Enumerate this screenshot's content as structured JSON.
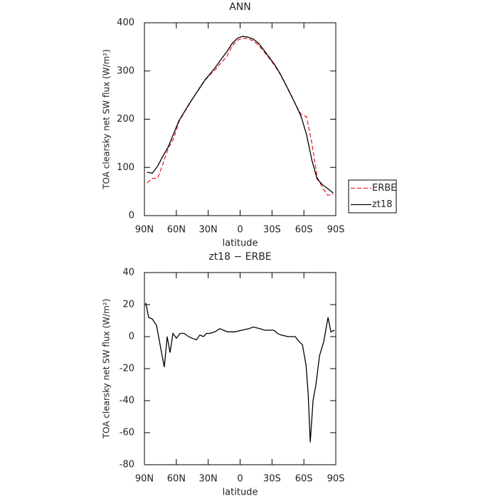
{
  "chart_data": [
    {
      "type": "line",
      "title": "ANN",
      "x_label": "latitude",
      "y_label": "TOA clearsky net SW flux (W/m²)",
      "x": [
        87.5,
        82.5,
        77.5,
        72.5,
        67.5,
        62.5,
        57.5,
        52.5,
        47.5,
        42.5,
        37.5,
        32.5,
        27.5,
        22.5,
        17.5,
        12.5,
        7.5,
        2.5,
        -2.5,
        -7.5,
        -12.5,
        -17.5,
        -22.5,
        -27.5,
        -32.5,
        -37.5,
        -42.5,
        -47.5,
        -52.5,
        -57.5,
        -62.5,
        -67.5,
        -72.5,
        -77.5,
        -82.5,
        -87.5
      ],
      "series": [
        {
          "name": "ERBE",
          "color": "#e8262b",
          "dashed": true,
          "values": [
            68,
            77,
            78,
            108,
            140,
            160,
            195,
            214,
            232,
            250,
            266,
            282,
            294,
            305,
            318,
            330,
            352,
            364,
            368,
            367,
            362,
            353,
            340,
            326,
            311,
            294,
            273,
            251,
            229,
            210,
            205,
            150,
            80,
            58,
            42,
            45
          ]
        },
        {
          "name": "zt18",
          "color": "#000000",
          "dashed": false,
          "values": [
            90,
            88,
            103,
            124,
            143,
            170,
            197,
            215,
            233,
            250,
            267,
            283,
            296,
            310,
            325,
            340,
            357,
            368,
            372,
            370,
            366,
            357,
            343,
            328,
            313,
            295,
            274,
            252,
            229,
            205,
            168,
            115,
            76,
            64,
            56,
            47
          ]
        }
      ],
      "xlim": [
        90,
        -90
      ],
      "xticks": [
        {
          "value": 90,
          "label": "90N"
        },
        {
          "value": 60,
          "label": "60N"
        },
        {
          "value": 30,
          "label": "30N"
        },
        0,
        {
          "value": -30,
          "label": "30S"
        },
        {
          "value": -60,
          "label": "60S"
        },
        {
          "value": -90,
          "label": "90S"
        }
      ],
      "ylim": [
        0,
        400
      ],
      "yticks": [
        0,
        100,
        200,
        300,
        400
      ],
      "legend": "outside-right"
    },
    {
      "type": "line",
      "title": "zt18 − ERBE",
      "x_label": "latitude",
      "y_label": "TOA clearsky net SW flux (W/m²)",
      "x": [
        88.7,
        86,
        82.6,
        78.6,
        75.3,
        71.3,
        68.6,
        65.9,
        63.2,
        59.9,
        56.5,
        52.5,
        48.5,
        45.2,
        41.1,
        37.8,
        34.4,
        31.8,
        28.4,
        23.7,
        19.1,
        15.7,
        11.7,
        5,
        -1.7,
        -8.4,
        -12.4,
        -18.4,
        -23.1,
        -31.8,
        -35.2,
        -38.5,
        -45.2,
        -51.9,
        -55.2,
        -58.6,
        -62,
        -64,
        -66,
        -68.6,
        -71.3,
        -74.7,
        -78.7,
        -82.7,
        -85.4,
        -88.7
      ],
      "color": "#000000",
      "values": [
        21,
        12,
        11,
        7,
        -5,
        -19,
        0,
        -10,
        2,
        -1,
        2,
        2,
        0,
        -1,
        -2,
        1,
        0,
        2,
        2,
        3,
        5,
        4,
        3,
        3,
        4,
        5,
        6,
        5,
        4,
        4,
        2,
        1,
        0,
        0,
        -3,
        -5,
        -18,
        -35,
        -66,
        -40,
        -30,
        -12,
        -3,
        12,
        3,
        4
      ],
      "xlim": [
        90,
        -90
      ],
      "xticks": [
        {
          "value": 90,
          "label": "90N"
        },
        {
          "value": 60,
          "label": "60N"
        },
        {
          "value": 30,
          "label": "30N"
        },
        0,
        {
          "value": -30,
          "label": "30S"
        },
        {
          "value": -60,
          "label": "60S"
        },
        {
          "value": -90,
          "label": "90S"
        }
      ],
      "ylim": [
        -80,
        40
      ],
      "yticks": [
        -80,
        -60,
        -40,
        -20,
        0,
        20,
        40
      ]
    }
  ]
}
